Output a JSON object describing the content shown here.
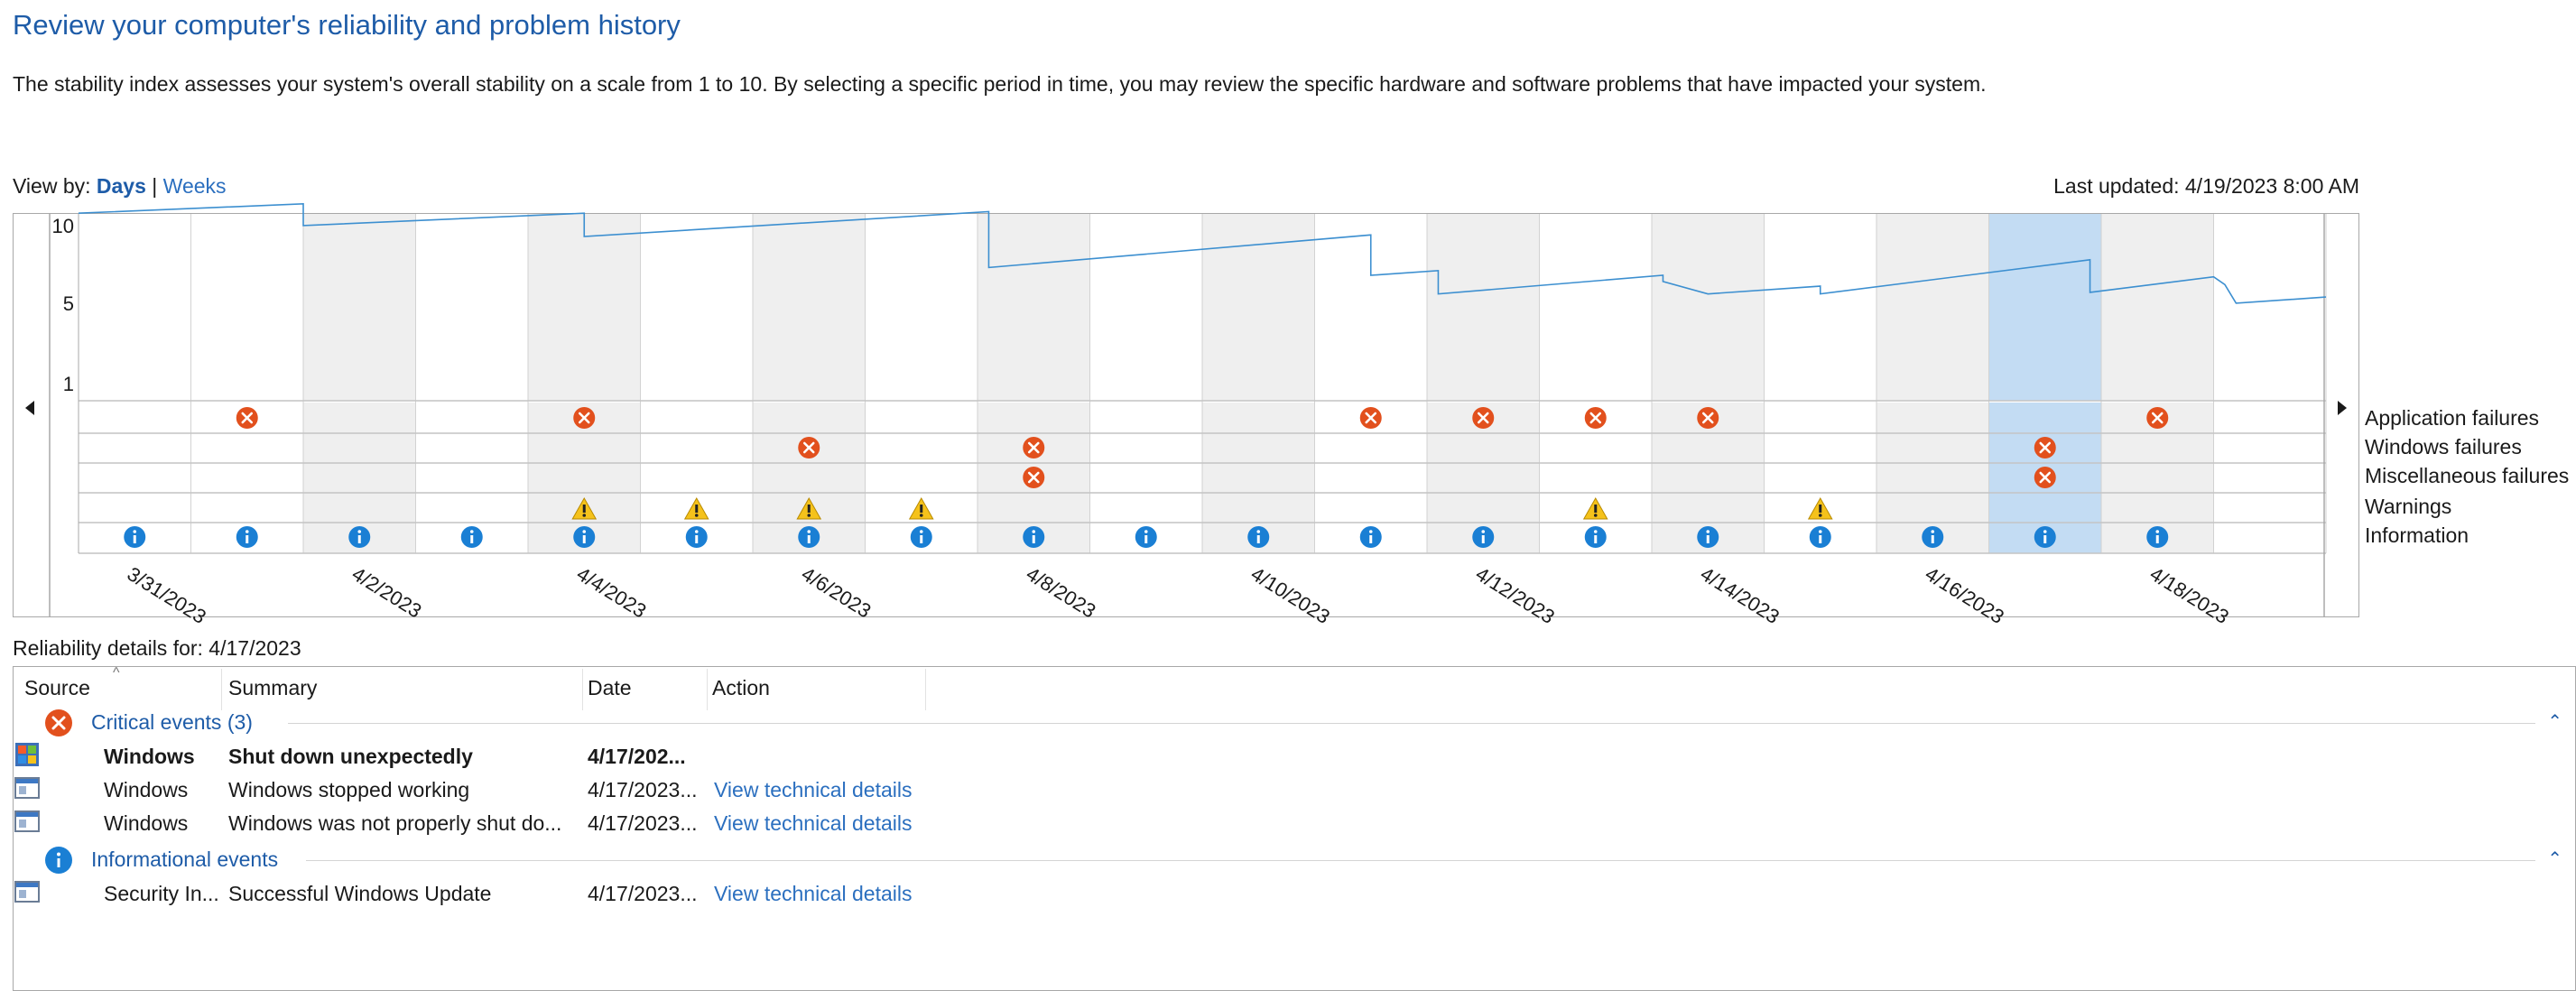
{
  "page": {
    "title": "Review your computer's reliability and problem history",
    "description": "The stability index assesses your system's overall stability on a scale from 1 to 10. By selecting a specific period in time, you may review the specific hardware and software problems that have impacted your system."
  },
  "view_by": {
    "label": "View by:",
    "days": "Days",
    "separator": "|",
    "weeks": "Weeks",
    "selected": "Days"
  },
  "last_updated": "Last updated: 4/19/2023 8:00 AM",
  "colors": {
    "title": "#1e5ca8",
    "link": "#2b6fbf",
    "line": "#3c8fd0",
    "selected": "#c3dcf3",
    "shaded": "#efefef",
    "error": "#e2501d",
    "info": "#1a7fd4",
    "warning": "#f5c21b"
  },
  "chart_data": {
    "type": "line",
    "y_ticks": [
      "10",
      "5",
      "1"
    ],
    "ylim": [
      1,
      10
    ],
    "x_labels": [
      "3/31/2023",
      "4/2/2023",
      "4/4/2023",
      "4/6/2023",
      "4/8/2023",
      "4/10/2023",
      "4/12/2023",
      "4/14/2023",
      "4/16/2023",
      "4/18/2023"
    ],
    "days": [
      "3/31/2023",
      "4/1/2023",
      "4/2/2023",
      "4/3/2023",
      "4/4/2023",
      "4/5/2023",
      "4/6/2023",
      "4/7/2023",
      "4/8/2023",
      "4/9/2023",
      "4/10/2023",
      "4/11/2023",
      "4/12/2023",
      "4/13/2023",
      "4/14/2023",
      "4/15/2023",
      "4/16/2023",
      "4/17/2023",
      "4/18/2023",
      "4/19/2023"
    ],
    "selected_day": "4/17/2023",
    "stability_series": [
      [
        0,
        9.0
      ],
      [
        2.0,
        9.6
      ],
      [
        2.0,
        8.2
      ],
      [
        4.5,
        9.0
      ],
      [
        4.5,
        7.5
      ],
      [
        8.1,
        9.1
      ],
      [
        8.1,
        5.5
      ],
      [
        11.5,
        7.6
      ],
      [
        11.5,
        5.0
      ],
      [
        12.1,
        5.3
      ],
      [
        12.1,
        3.8
      ],
      [
        14.1,
        5.0
      ],
      [
        14.1,
        4.6
      ],
      [
        14.5,
        3.8
      ],
      [
        15.5,
        4.3
      ],
      [
        15.5,
        3.8
      ],
      [
        17.9,
        6.0
      ],
      [
        17.9,
        3.9
      ],
      [
        19.0,
        4.9
      ],
      [
        19.1,
        4.4
      ],
      [
        19.2,
        3.2
      ],
      [
        20.0,
        3.6
      ]
    ],
    "rows": [
      {
        "name": "Application failures",
        "icon": "error",
        "days": [
          1,
          4,
          11,
          12,
          13,
          14,
          18
        ]
      },
      {
        "name": "Windows failures",
        "icon": "error",
        "days": [
          6,
          8,
          17
        ]
      },
      {
        "name": "Miscellaneous failures",
        "icon": "error",
        "days": [
          8,
          17
        ]
      },
      {
        "name": "Warnings",
        "icon": "warning",
        "days": [
          4,
          5,
          6,
          7,
          13,
          15
        ]
      },
      {
        "name": "Information",
        "icon": "info",
        "days": [
          0,
          1,
          2,
          3,
          4,
          5,
          6,
          7,
          8,
          9,
          10,
          11,
          12,
          13,
          14,
          15,
          16,
          17,
          18
        ]
      }
    ]
  },
  "details": {
    "title": "Reliability details for: 4/17/2023",
    "columns": [
      "Source",
      "Summary",
      "Date",
      "Action"
    ],
    "groups": [
      {
        "label": "Critical events (3)",
        "icon": "error-icon",
        "rows": [
          {
            "source": "Windows",
            "summary": "Shut down unexpectedly",
            "date": "4/17/202...",
            "action": "",
            "bold": true,
            "icon": "windows-shield-icon"
          },
          {
            "source": "Windows",
            "summary": "Windows stopped working",
            "date": "4/17/2023...",
            "action": "View technical details",
            "bold": false,
            "icon": "app-window-icon"
          },
          {
            "source": "Windows",
            "summary": "Windows was not properly shut do...",
            "date": "4/17/2023...",
            "action": "View technical details",
            "bold": false,
            "icon": "app-window-icon"
          }
        ]
      },
      {
        "label": "Informational events",
        "icon": "info-icon",
        "rows": [
          {
            "source": "Security In...",
            "summary": "Successful Windows Update",
            "date": "4/17/2023...",
            "action": "View technical details",
            "bold": false,
            "icon": "app-window-icon"
          }
        ]
      }
    ]
  }
}
